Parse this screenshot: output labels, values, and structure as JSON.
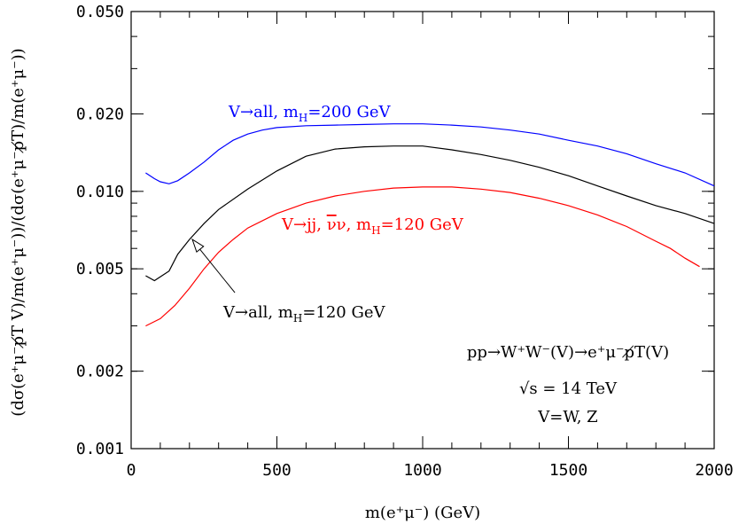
{
  "chart_data": {
    "type": "line",
    "title": "",
    "xlabel": "m(e⁺μ⁻) (GeV)",
    "ylabel": "(dσ(e⁺μ⁻p̸T V)/m(e⁺μ⁻))/(dσ(e⁺μ⁻p̸T)/m(e⁺μ⁻))",
    "xlim": [
      0,
      2000
    ],
    "ylim": [
      0.001,
      0.05
    ],
    "yscale": "log",
    "grid": false,
    "x_ticks": [
      0,
      500,
      1000,
      1500,
      2000
    ],
    "x_tick_labels": [
      "0",
      "500",
      "1000",
      "1500",
      "2000"
    ],
    "y_ticks": [
      0.001,
      0.002,
      0.005,
      0.01,
      0.02,
      0.05
    ],
    "y_tick_labels": [
      "0.001",
      "0.002",
      "0.005",
      "0.010",
      "0.020",
      "0.050"
    ],
    "series": [
      {
        "name": "V→all, mH=200 GeV",
        "color": "#0000ff",
        "x": [
          50,
          80,
          100,
          130,
          160,
          200,
          250,
          300,
          350,
          400,
          450,
          500,
          600,
          700,
          800,
          900,
          1000,
          1100,
          1200,
          1300,
          1400,
          1500,
          1600,
          1700,
          1800,
          1900,
          2000
        ],
        "y": [
          0.0118,
          0.0112,
          0.0109,
          0.0107,
          0.011,
          0.0118,
          0.013,
          0.0145,
          0.0158,
          0.0167,
          0.0173,
          0.0177,
          0.018,
          0.0181,
          0.0182,
          0.0183,
          0.0183,
          0.0181,
          0.0178,
          0.0173,
          0.0167,
          0.0158,
          0.015,
          0.014,
          0.0128,
          0.0118,
          0.0105
        ]
      },
      {
        "name": "V→all, mH=120 GeV",
        "color": "#000000",
        "x": [
          50,
          80,
          130,
          160,
          200,
          250,
          300,
          400,
          500,
          600,
          700,
          800,
          900,
          1000,
          1100,
          1200,
          1300,
          1400,
          1500,
          1600,
          1700,
          1800,
          1900,
          2000
        ],
        "y": [
          0.0047,
          0.0045,
          0.0049,
          0.0057,
          0.0065,
          0.0075,
          0.0085,
          0.0102,
          0.012,
          0.0137,
          0.0146,
          0.0149,
          0.015,
          0.015,
          0.0145,
          0.0139,
          0.0132,
          0.0124,
          0.0115,
          0.0105,
          0.0096,
          0.0088,
          0.0082,
          0.0075
        ]
      },
      {
        "name": "V→jj, ν̄ν, mH=120 GeV",
        "color": "#ff0000",
        "x": [
          50,
          100,
          150,
          200,
          250,
          300,
          350,
          400,
          500,
          600,
          700,
          800,
          900,
          1000,
          1100,
          1200,
          1300,
          1400,
          1500,
          1600,
          1700,
          1800,
          1850,
          1900,
          1950
        ],
        "y": [
          0.003,
          0.0032,
          0.0036,
          0.0042,
          0.005,
          0.0058,
          0.0065,
          0.0072,
          0.0082,
          0.009,
          0.0096,
          0.01,
          0.0103,
          0.0104,
          0.0104,
          0.0102,
          0.0099,
          0.0094,
          0.0088,
          0.0081,
          0.0073,
          0.0064,
          0.006,
          0.0055,
          0.0051
        ]
      }
    ],
    "annotations": {
      "blue_label": {
        "main": "V→all, m",
        "sub": "H",
        "tail": "=200 GeV"
      },
      "red_label": {
        "main": "V→jj, ",
        "nubar": "ν",
        "mid": "ν, m",
        "sub": "H",
        "tail": "=120 GeV"
      },
      "black_label": {
        "main": "V→all, m",
        "sub": "H",
        "tail": "=120 GeV"
      },
      "process": "pp→W⁺W⁻(V)→e⁺μ⁻p̸T(V)",
      "energy": "√s  =  14 TeV",
      "bosons": "V=W, Z",
      "arrow_target_x": 210,
      "arrow_target_y": 0.0065
    }
  }
}
